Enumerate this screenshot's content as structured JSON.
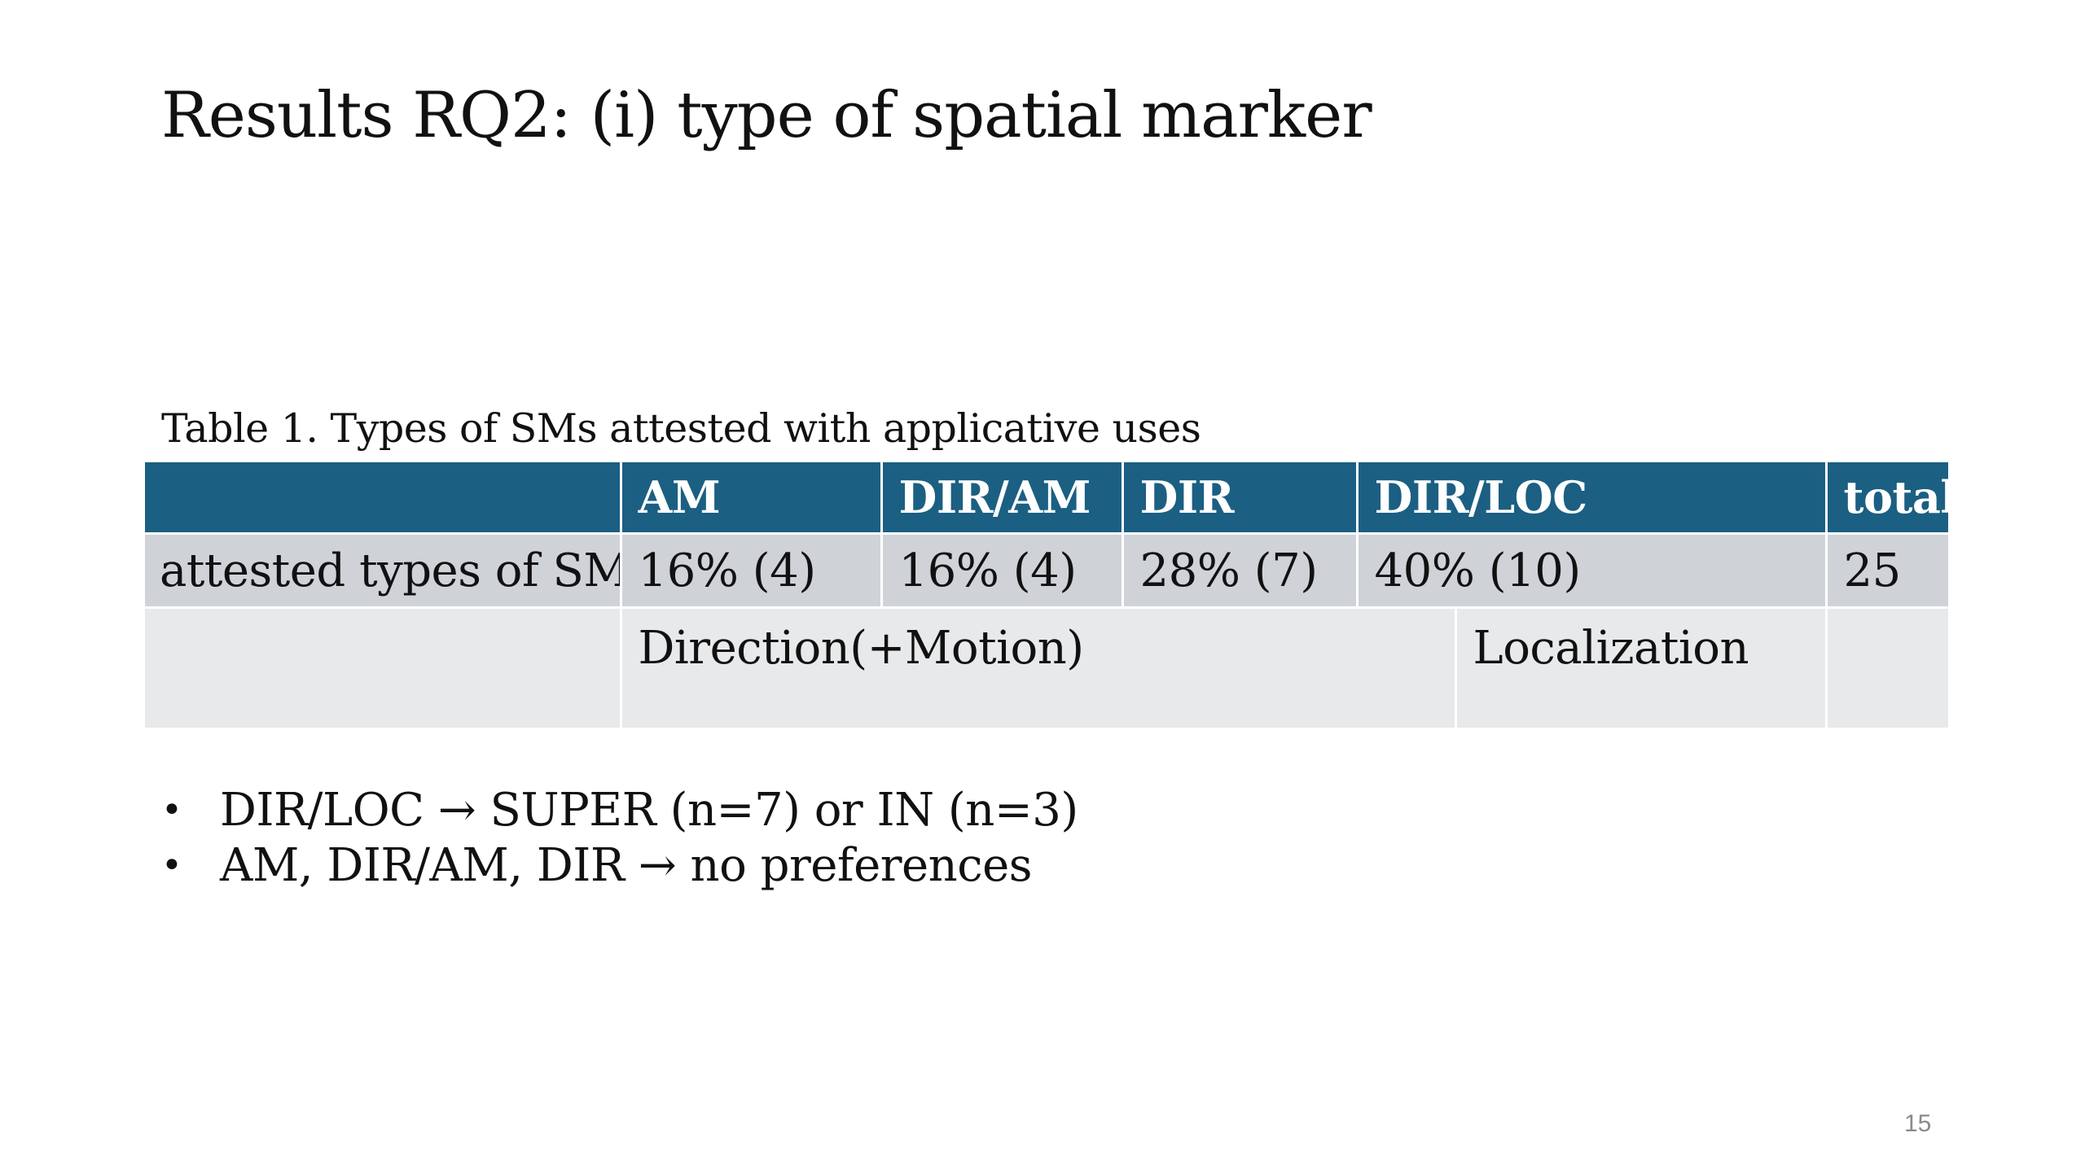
{
  "title": "Results RQ2: (i) type of spatial marker",
  "table": {
    "caption": "Table 1. Types of SMs attested with applicative uses",
    "header": [
      "",
      "AM",
      "DIR/AM",
      "DIR",
      "DIR/LOC",
      "total"
    ],
    "row1": {
      "label": "attested types of SMs",
      "cells": [
        "16% (4)",
        "16% (4)",
        "28% (7)",
        "40% (10)",
        "25"
      ]
    },
    "row2": {
      "label": "",
      "direction_motion": "Direction(+Motion)",
      "localization": "Localization",
      "total": ""
    }
  },
  "bullets": [
    {
      "marker": "•",
      "text": "DIR/LOC → SUPER (n=7) or IN (n=3)"
    },
    {
      "marker": "•",
      "text": "AM, DIR/AM, DIR → no preferences"
    }
  ],
  "page_number": "15",
  "colors": {
    "header_bg": "#1b5f82",
    "row1_bg": "#cfd3d7",
    "row2_bg": "#e8e9eb"
  }
}
